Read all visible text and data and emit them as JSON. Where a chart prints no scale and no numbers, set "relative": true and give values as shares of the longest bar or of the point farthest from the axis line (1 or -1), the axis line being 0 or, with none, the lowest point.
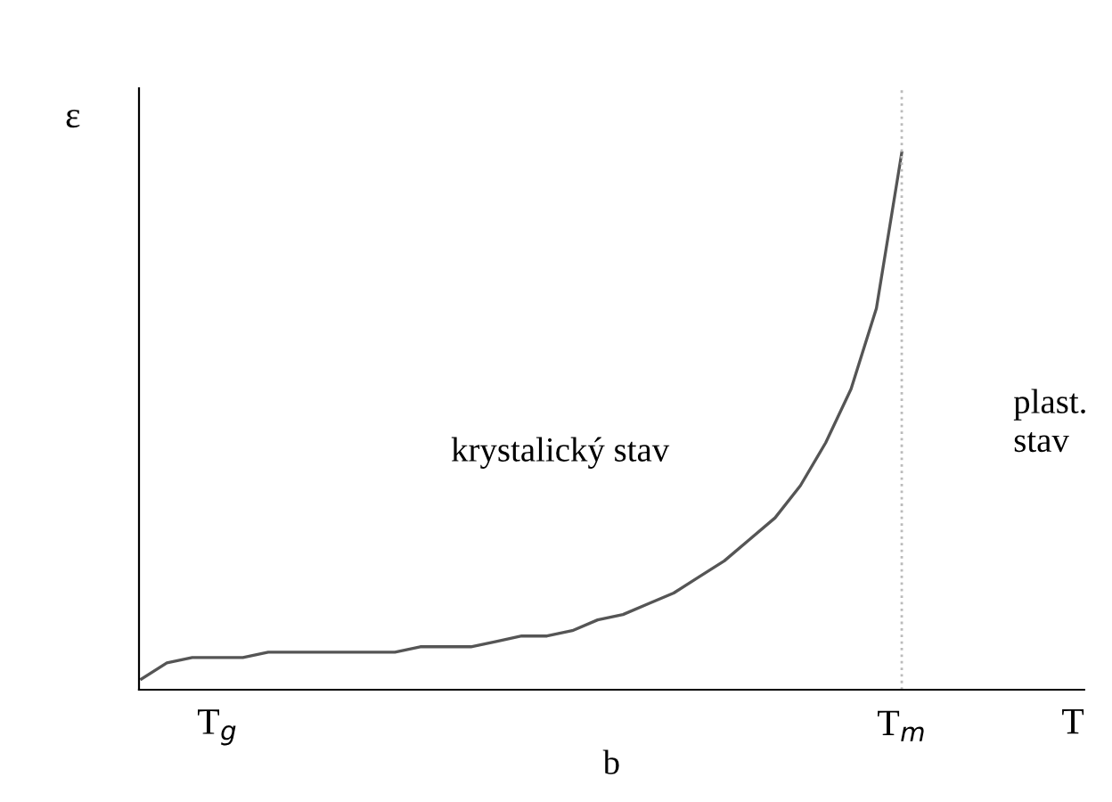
{
  "chart_data": {
    "type": "line",
    "relative": true,
    "xlabel": "T",
    "ylabel": "ε",
    "categories": [
      null,
      null,
      null,
      "T$_{g}$",
      null,
      null,
      null,
      null,
      null,
      null,
      null,
      null,
      null,
      null,
      null,
      null,
      null,
      null,
      null,
      null,
      null,
      null,
      null,
      null,
      null,
      null,
      null,
      null,
      null,
      null,
      "T$_{m}$"
    ],
    "series": [
      {
        "color": "#555555",
        "values": [
          0.02,
          0.05,
          0.06,
          0.06,
          0.06,
          0.07,
          0.07,
          0.07,
          0.07,
          0.07,
          0.07,
          0.08,
          0.08,
          0.08,
          0.09,
          0.1,
          0.1,
          0.11,
          0.13,
          0.14,
          0.16,
          0.18,
          0.21,
          0.24,
          0.28,
          0.32,
          0.38,
          0.46,
          0.56,
          0.71,
          1.0
        ]
      }
    ],
    "ref_lines": [
      {
        "axis": "x",
        "value": "T$_{m}$",
        "color": "#bbbbbb",
        "line_style": "dotted"
      }
    ],
    "annotations": [
      "krystalický stav",
      "plast. stav",
      "b"
    ],
    "grid": false,
    "legend": false,
    "marker": "none",
    "line_style": "solid"
  }
}
